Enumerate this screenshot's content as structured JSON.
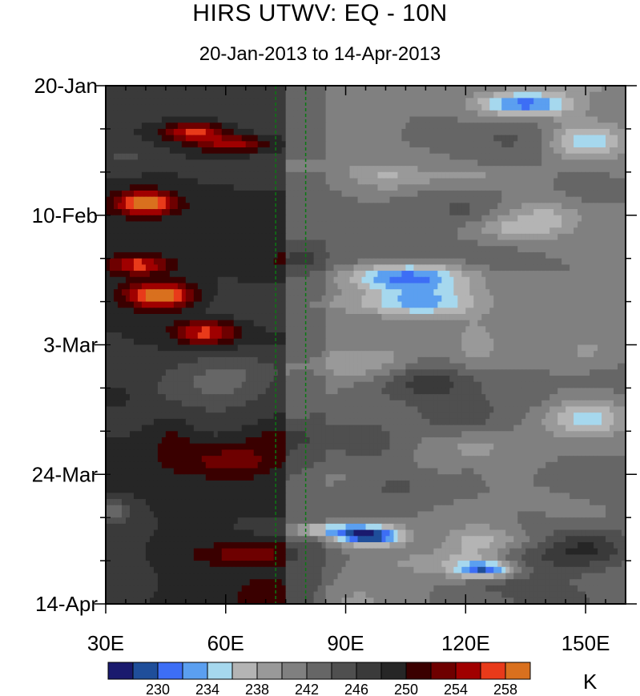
{
  "chart_data": {
    "type": "heatmap",
    "title": "HIRS UTWV: EQ - 10N",
    "subtitle": "20-Jan-2013 to 14-Apr-2013",
    "xlabel": "",
    "ylabel": "",
    "xlim": [
      30,
      160
    ],
    "x_ticks": [
      {
        "value": 30,
        "label": "30E"
      },
      {
        "value": 60,
        "label": "60E"
      },
      {
        "value": 90,
        "label": "90E"
      },
      {
        "value": 120,
        "label": "120E"
      },
      {
        "value": 150,
        "label": "150E"
      }
    ],
    "y_ticks": [
      {
        "day": 0,
        "label": "20-Jan"
      },
      {
        "day": 21,
        "label": "10-Feb"
      },
      {
        "day": 42,
        "label": "3-Mar"
      },
      {
        "day": 63,
        "label": "24-Mar"
      },
      {
        "day": 84,
        "label": "14-Apr"
      }
    ],
    "reference_lines_lon": [
      72.5,
      80
    ],
    "colorbar": {
      "unit": "K",
      "colors": [
        "#1a1a6e",
        "#1f4e9a",
        "#3d6ef5",
        "#5b9ff0",
        "#a6d8ee",
        "#b4b4b4",
        "#999999",
        "#808080",
        "#666666",
        "#4f4f4f",
        "#3a3a3a",
        "#262626",
        "#3a0000",
        "#6e0000",
        "#a00000",
        "#e83a1a",
        "#d9701e"
      ],
      "levels": [
        228,
        230,
        232,
        234,
        236,
        238,
        240,
        242,
        244,
        246,
        248,
        250,
        252,
        254,
        256,
        258
      ],
      "labels": [
        "230",
        "234",
        "238",
        "242",
        "246",
        "250",
        "254",
        "258"
      ]
    },
    "values_description_levels_K": "field range ~228-260 K",
    "features": [
      {
        "lon": 55,
        "day": 9,
        "value": 254,
        "label": ""
      },
      {
        "lon": 40,
        "day": 19,
        "value": 256,
        "label": ""
      },
      {
        "lon": 45,
        "day": 35,
        "value": 258,
        "label": ""
      },
      {
        "lon": 95,
        "day": 74,
        "value": 230,
        "label": ""
      },
      {
        "lon": 125,
        "day": 79,
        "value": 232,
        "label": ""
      }
    ]
  }
}
